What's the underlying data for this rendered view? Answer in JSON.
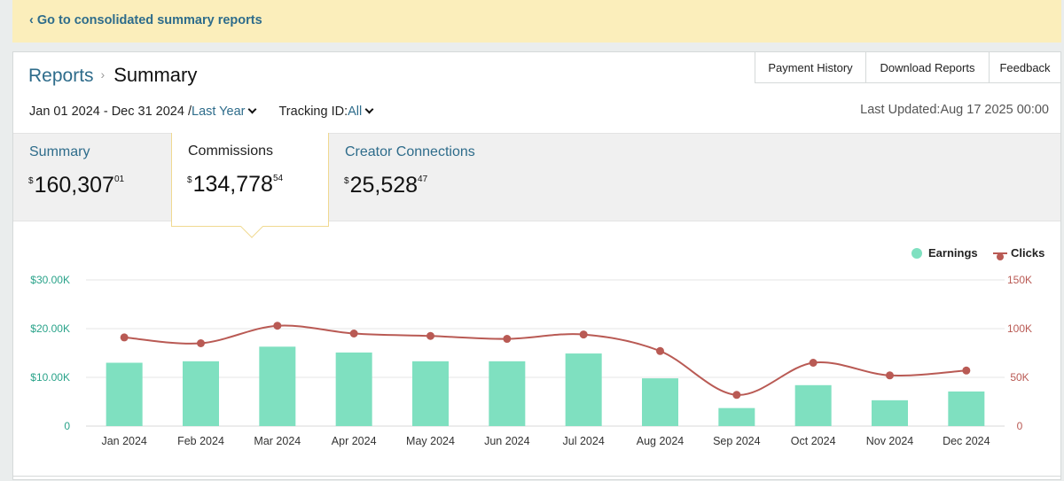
{
  "banner": {
    "link": "‹ Go to consolidated summary reports"
  },
  "breadcrumb": {
    "reports": "Reports",
    "separator": "›",
    "current": "Summary"
  },
  "buttons": {
    "payment_history": "Payment History",
    "download_reports": "Download Reports",
    "feedback": "Feedback"
  },
  "filters": {
    "date_range": "Jan 01 2024 - Dec 31 2024 /",
    "period": "Last Year",
    "tracking_label": "Tracking ID:",
    "tracking_value": "All"
  },
  "last_updated": "Last Updated:Aug 17 2025 00:00",
  "tabs": [
    {
      "label": "Summary",
      "currency": "$",
      "amount": "160,307",
      "cents": "01"
    },
    {
      "label": "Commissions",
      "currency": "$",
      "amount": "134,778",
      "cents": "54"
    },
    {
      "label": "Creator Connections",
      "currency": "$",
      "amount": "25,528",
      "cents": "47"
    }
  ],
  "colors": {
    "earnings": "#7fe0c0",
    "clicks": "#b95a54",
    "link": "#2e6c8b",
    "banner": "#fbeebb"
  },
  "chart_data": {
    "type": "bar",
    "categories": [
      "Jan 2024",
      "Feb 2024",
      "Mar 2024",
      "Apr 2024",
      "May 2024",
      "Jun 2024",
      "Jul 2024",
      "Aug 2024",
      "Sep 2024",
      "Oct 2024",
      "Nov 2024",
      "Dec 2024"
    ],
    "series": [
      {
        "name": "Earnings",
        "type": "bar",
        "axis": "left",
        "values": [
          13000,
          13300,
          16300,
          15100,
          13300,
          13300,
          14900,
          9800,
          3700,
          8400,
          5300,
          7100
        ]
      },
      {
        "name": "Clicks",
        "type": "line",
        "axis": "right",
        "values": [
          91000,
          85000,
          103000,
          95000,
          92500,
          89500,
          94000,
          77000,
          32000,
          65000,
          52000,
          57000
        ]
      }
    ],
    "left_axis": {
      "ticks": [
        "0",
        "$10.00K",
        "$20.00K",
        "$30.00K"
      ],
      "ylim": [
        0,
        30000
      ]
    },
    "right_axis": {
      "ticks": [
        "0",
        "50K",
        "100K",
        "150K"
      ],
      "ylim": [
        0,
        150000
      ]
    },
    "legend_position": "top-right",
    "grid": true
  }
}
